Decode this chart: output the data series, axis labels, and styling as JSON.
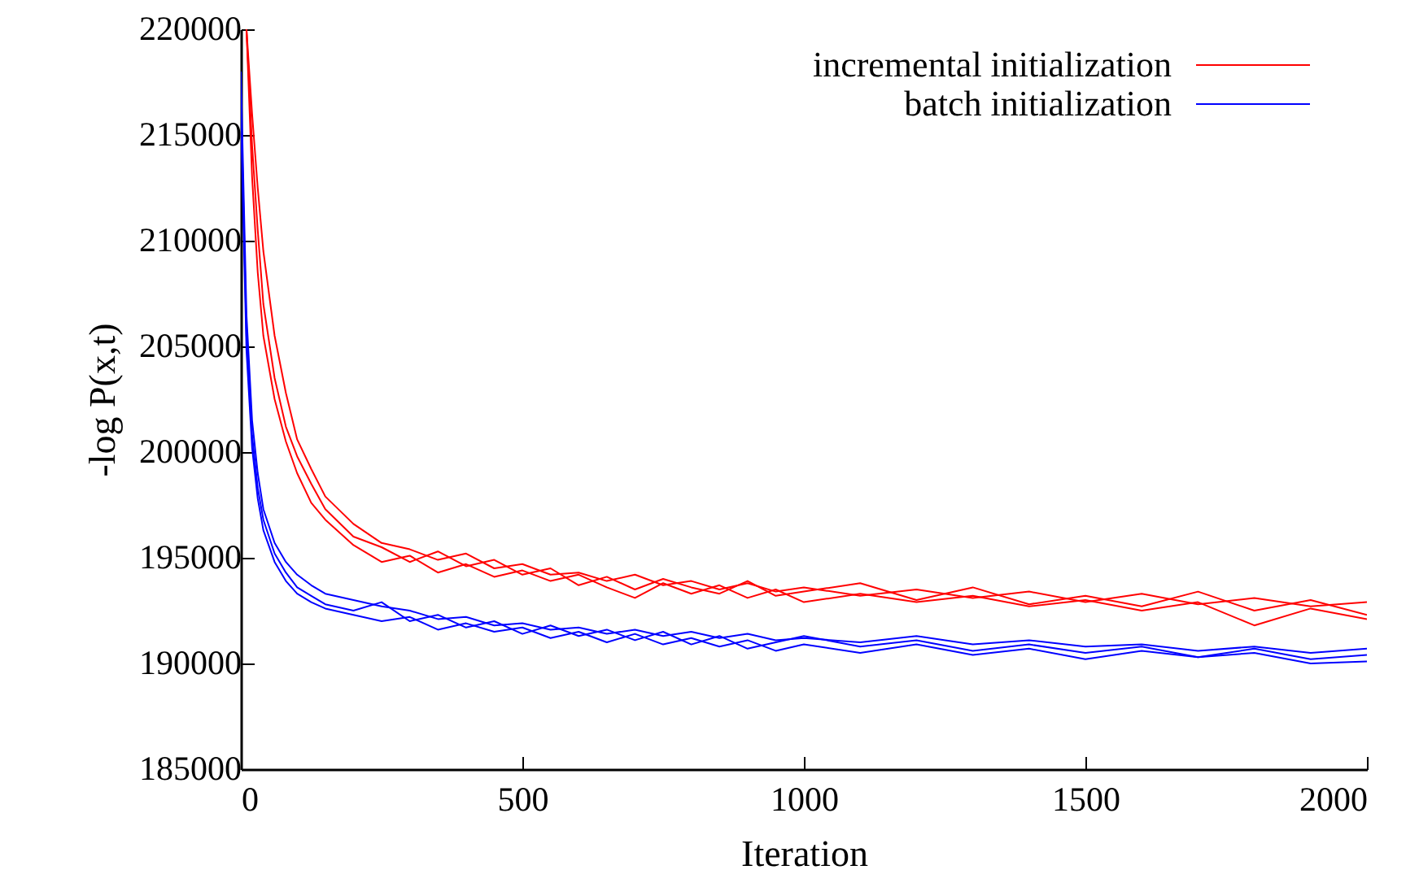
{
  "chart_data": {
    "type": "line",
    "xlabel": "Iteration",
    "ylabel": "-log P(x,t)",
    "xlim": [
      0,
      2000
    ],
    "ylim": [
      185000,
      220000
    ],
    "xticks": [
      0,
      500,
      1000,
      1500,
      2000
    ],
    "yticks": [
      185000,
      190000,
      195000,
      200000,
      205000,
      210000,
      215000,
      220000
    ],
    "grid": false,
    "legend": "top right",
    "marker": "none",
    "line_style": "solid",
    "series": [
      {
        "name": "incremental initialization",
        "color": "#ff0000",
        "x": [
          10,
          20,
          30,
          40,
          60,
          80,
          100,
          125,
          150,
          200,
          250,
          300,
          350,
          400,
          450,
          500,
          550,
          600,
          650,
          700,
          750,
          800,
          850,
          900,
          950,
          1000,
          1100,
          1200,
          1300,
          1400,
          1500,
          1600,
          1700,
          1800,
          1900,
          2000
        ],
        "values": [
          220000,
          216000,
          212500,
          209500,
          205500,
          202800,
          200600,
          199200,
          197900,
          196600,
          195700,
          195400,
          194900,
          195200,
          194500,
          194700,
          194200,
          194300,
          193900,
          194200,
          193700,
          193900,
          193500,
          193800,
          193400,
          193600,
          193200,
          193500,
          193100,
          193400,
          192900,
          193300,
          192800,
          193100,
          192700,
          192900
        ]
      },
      {
        "color": "#ff0000",
        "x": [
          10,
          20,
          30,
          40,
          60,
          80,
          100,
          125,
          150,
          200,
          250,
          300,
          350,
          400,
          450,
          500,
          550,
          600,
          650,
          700,
          750,
          800,
          850,
          900,
          950,
          1000,
          1100,
          1200,
          1300,
          1400,
          1500,
          1600,
          1700,
          1800,
          1900,
          2000
        ],
        "values": [
          220000,
          214500,
          210500,
          207000,
          203500,
          201200,
          199800,
          198500,
          197300,
          196000,
          195500,
          194800,
          195300,
          194600,
          194900,
          194200,
          194500,
          193700,
          194100,
          193500,
          194000,
          193600,
          193300,
          193900,
          193200,
          193400,
          193800,
          193000,
          193600,
          192800,
          193200,
          192700,
          193400,
          192500,
          193000,
          192300
        ]
      },
      {
        "color": "#ff0000",
        "x": [
          10,
          20,
          30,
          40,
          60,
          80,
          100,
          125,
          150,
          200,
          250,
          300,
          350,
          400,
          450,
          500,
          550,
          600,
          650,
          700,
          750,
          800,
          850,
          900,
          950,
          1000,
          1100,
          1200,
          1300,
          1400,
          1500,
          1600,
          1700,
          1800,
          1900,
          2000
        ],
        "values": [
          220000,
          213000,
          208500,
          205500,
          202500,
          200500,
          199000,
          197600,
          196800,
          195600,
          194800,
          195100,
          194300,
          194700,
          194100,
          194400,
          193900,
          194200,
          193600,
          193100,
          193800,
          193300,
          193700,
          193100,
          193500,
          192900,
          193300,
          192900,
          193200,
          192700,
          193000,
          192500,
          192900,
          191800,
          192600,
          192100
        ]
      },
      {
        "name": "batch initialization",
        "color": "#0000ff",
        "x": [
          0,
          10,
          20,
          30,
          40,
          60,
          80,
          100,
          125,
          150,
          200,
          250,
          300,
          350,
          400,
          450,
          500,
          550,
          600,
          650,
          700,
          750,
          800,
          850,
          900,
          950,
          1000,
          1100,
          1200,
          1300,
          1400,
          1500,
          1600,
          1700,
          1800,
          1900,
          2000
        ],
        "values": [
          218000,
          206500,
          201500,
          199000,
          197300,
          195700,
          194800,
          194200,
          193700,
          193300,
          193000,
          192700,
          192500,
          192100,
          192200,
          191800,
          191900,
          191600,
          191700,
          191400,
          191600,
          191300,
          191500,
          191200,
          191400,
          191100,
          191200,
          191000,
          191300,
          190900,
          191100,
          190800,
          190900,
          190600,
          190800,
          190500,
          190700
        ]
      },
      {
        "color": "#0000ff",
        "x": [
          0,
          10,
          20,
          30,
          40,
          60,
          80,
          100,
          125,
          150,
          200,
          250,
          300,
          350,
          400,
          450,
          500,
          550,
          600,
          650,
          700,
          750,
          800,
          850,
          900,
          950,
          1000,
          1100,
          1200,
          1300,
          1400,
          1500,
          1600,
          1700,
          1800,
          1900,
          2000
        ],
        "values": [
          217000,
          205500,
          200800,
          198300,
          196800,
          195200,
          194300,
          193600,
          193200,
          192800,
          192500,
          192900,
          192000,
          192300,
          191700,
          192000,
          191400,
          191800,
          191300,
          191600,
          191100,
          191500,
          190900,
          191300,
          190700,
          191000,
          191300,
          190800,
          191100,
          190600,
          190900,
          190500,
          190800,
          190300,
          190700,
          190200,
          190400
        ]
      },
      {
        "color": "#0000ff",
        "x": [
          0,
          10,
          20,
          30,
          40,
          60,
          80,
          100,
          125,
          150,
          200,
          250,
          300,
          350,
          400,
          450,
          500,
          550,
          600,
          650,
          700,
          750,
          800,
          850,
          900,
          950,
          1000,
          1100,
          1200,
          1300,
          1400,
          1500,
          1600,
          1700,
          1800,
          1900,
          2000
        ],
        "values": [
          216000,
          204800,
          200200,
          197800,
          196300,
          194800,
          193900,
          193300,
          192900,
          192600,
          192300,
          192000,
          192200,
          191600,
          191900,
          191500,
          191700,
          191200,
          191500,
          191000,
          191400,
          190900,
          191200,
          190800,
          191100,
          190600,
          190900,
          190500,
          190900,
          190400,
          190700,
          190200,
          190600,
          190300,
          190500,
          190000,
          190100
        ]
      }
    ]
  }
}
